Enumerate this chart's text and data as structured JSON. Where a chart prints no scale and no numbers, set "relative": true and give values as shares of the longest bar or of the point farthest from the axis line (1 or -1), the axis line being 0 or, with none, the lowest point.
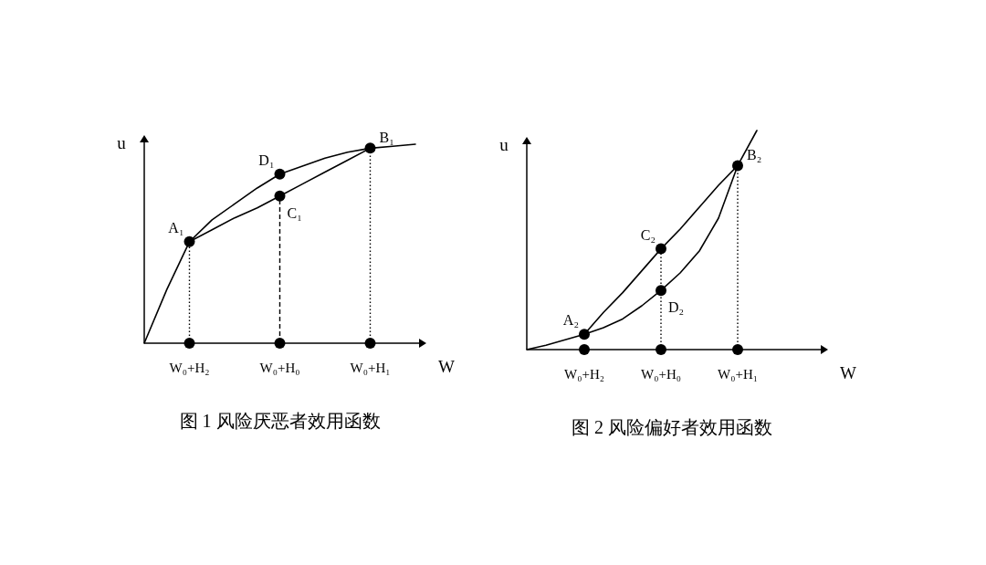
{
  "chart_data": [
    {
      "type": "line",
      "title": "图 1  风险厌恶者效用函数",
      "xlabel": "W",
      "ylabel": "u",
      "relative": true,
      "categories": [
        null,
        null,
        "W₀+H₂",
        null,
        null,
        null,
        "W₀+H₀",
        null,
        null,
        null,
        "W₀+H₁",
        null,
        null
      ],
      "series": [
        {
          "color": "#000000",
          "marker": "none",
          "line_style": "solid",
          "values": [
            0,
            0.27,
            0.51,
            0.62,
            0.7,
            0.78,
            0.85,
            0.89,
            0.93,
            0.96,
            0.98,
            0.99,
            1.0
          ]
        },
        {
          "color": "#000000",
          "marker": "none",
          "line_style": "solid",
          "values": [
            null,
            null,
            0.51,
            0.57,
            0.63,
            0.68,
            0.74,
            0.8,
            0.86,
            0.92,
            0.98,
            null,
            null
          ]
        },
        {
          "type": "lollipop",
          "color": "#000000",
          "marker": "circle",
          "line_style": "dotted",
          "values": [
            null,
            null,
            0.51,
            null,
            null,
            null,
            null,
            null,
            null,
            null,
            0.98,
            null,
            null
          ]
        },
        {
          "type": "lollipop",
          "color": "#000000",
          "marker": "circle",
          "line_style": "dashed",
          "values": [
            null,
            null,
            null,
            null,
            null,
            null,
            0.74,
            null,
            null,
            null,
            null,
            null,
            null
          ]
        },
        {
          "type": "scatter",
          "color": "#000000",
          "marker": "circle",
          "values": [
            null,
            null,
            null,
            null,
            null,
            null,
            0.85,
            null,
            null,
            null,
            null,
            null,
            null
          ]
        },
        {
          "type": "scatter",
          "color": "#000000",
          "marker": "circle",
          "values": [
            null,
            null,
            0,
            null,
            null,
            null,
            0,
            null,
            null,
            null,
            0,
            null,
            null
          ]
        }
      ],
      "annotations": [
        {
          "text": "A₁",
          "x": "W₀+H₂",
          "y": 0.51
        },
        {
          "text": "D₁",
          "x": "W₀+H₀",
          "y": 0.85
        },
        {
          "text": "C₁",
          "x": "W₀+H₀",
          "y": 0.74
        },
        {
          "text": "B₁",
          "x": "W₀+H₁",
          "y": 0.98
        }
      ]
    },
    {
      "type": "line",
      "title": "图 2  风险偏好者效用函数",
      "xlabel": "W",
      "ylabel": "u",
      "relative": true,
      "categories": [
        null,
        null,
        null,
        "W₀+H₂",
        null,
        null,
        null,
        "W₀+H₀",
        null,
        null,
        null,
        "W₀+H₁",
        null
      ],
      "series": [
        {
          "color": "#000000",
          "marker": "none",
          "line_style": "solid",
          "values": [
            0,
            0.02,
            0.045,
            0.07,
            0.1,
            0.14,
            0.2,
            0.27,
            0.35,
            0.45,
            0.6,
            0.84,
            1.0
          ]
        },
        {
          "color": "#000000",
          "marker": "none",
          "line_style": "solid",
          "values": [
            null,
            null,
            null,
            0.07,
            0.17,
            0.26,
            0.36,
            0.46,
            0.55,
            0.65,
            0.75,
            0.84,
            null
          ]
        },
        {
          "type": "lollipop",
          "color": "#000000",
          "marker": "circle",
          "line_style": "dotted",
          "values": [
            null,
            null,
            null,
            null,
            null,
            null,
            null,
            0.46,
            null,
            null,
            null,
            0.84,
            null
          ]
        },
        {
          "type": "scatter",
          "color": "#000000",
          "marker": "circle",
          "values": [
            null,
            null,
            null,
            0.07,
            null,
            null,
            null,
            0.27,
            null,
            null,
            null,
            null,
            null
          ]
        },
        {
          "type": "scatter",
          "color": "#000000",
          "marker": "circle",
          "values": [
            null,
            null,
            null,
            0,
            null,
            null,
            null,
            0,
            null,
            null,
            null,
            0,
            null
          ]
        }
      ],
      "annotations": [
        {
          "text": "A₂",
          "x": "W₀+H₂",
          "y": 0.07
        },
        {
          "text": "C₂",
          "x": "W₀+H₀",
          "y": 0.46
        },
        {
          "text": "D₂",
          "x": "W₀+H₀",
          "y": 0.27
        },
        {
          "text": "B₂",
          "x": "W₀+H₁",
          "y": 0.84
        }
      ]
    }
  ]
}
